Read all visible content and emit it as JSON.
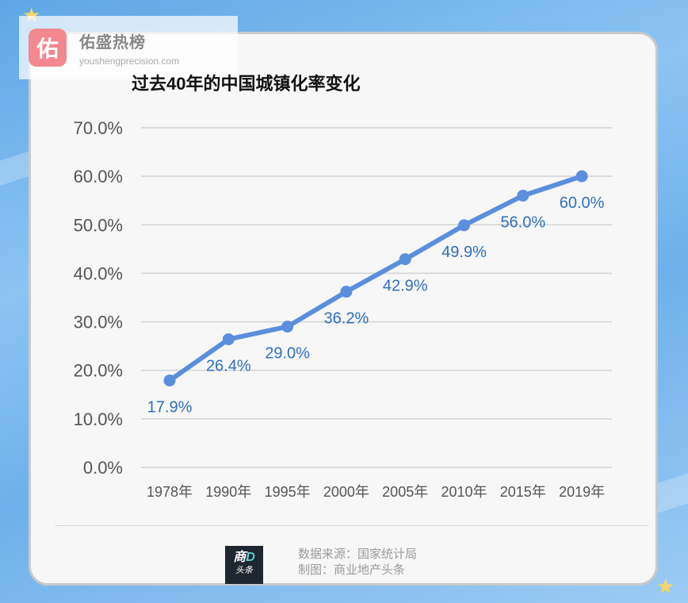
{
  "watermark": {
    "logo_char": "佑",
    "name": "佑盛热榜",
    "url": "youshengprecision.com"
  },
  "chart_data": {
    "type": "line",
    "title": "过去40年的中国城镇化率变化",
    "categories": [
      "1978年",
      "1990年",
      "1995年",
      "2000年",
      "2005年",
      "2010年",
      "2015年",
      "2019年"
    ],
    "values": [
      17.9,
      26.4,
      29.0,
      36.2,
      42.9,
      49.9,
      56.0,
      60.0
    ],
    "data_labels": [
      "17.9%",
      "26.4%",
      "29.0%",
      "36.2%",
      "42.9%",
      "49.9%",
      "56.0%",
      "60.0%"
    ],
    "y_ticks": [
      "0.0%",
      "10.0%",
      "20.0%",
      "30.0%",
      "40.0%",
      "50.0%",
      "60.0%",
      "70.0%"
    ],
    "ylim": [
      0,
      70
    ],
    "grid": true,
    "legend": "none",
    "colors": {
      "line": "#5b8fdd",
      "data_label": "#2e6fbf",
      "axis_text": "#555555",
      "grid": "#d4d4d4"
    }
  },
  "footer": {
    "logo_top": "商",
    "logo_d": "D",
    "logo_bottom": "头条",
    "source": "数据来源：国家统计局",
    "credit": "制图：商业地产头条"
  }
}
